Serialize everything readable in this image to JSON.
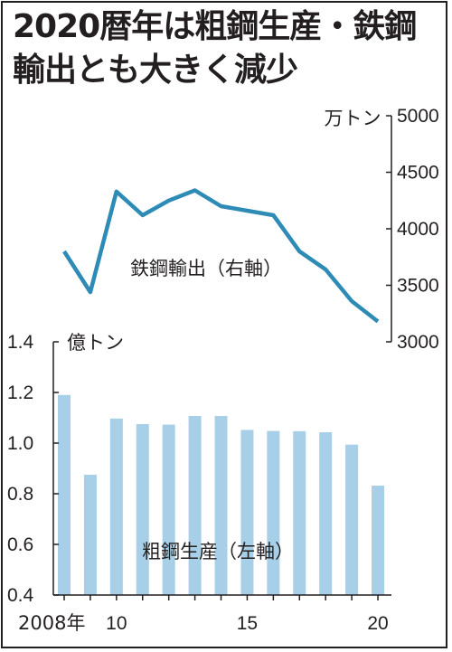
{
  "title": {
    "line1": "2020暦年は粗鋼生産・鉄鋼",
    "line2": "輸出とも大きく減少"
  },
  "colors": {
    "bar": "#a8cfe8",
    "line": "#2d8bb6",
    "ink": "#231f20"
  },
  "chart_data": [
    {
      "type": "line",
      "name": "鉄鋼輸出",
      "label": "鉄鋼輸出（右軸）",
      "axis": "right",
      "unit": "万トン",
      "x": [
        2008,
        2009,
        2010,
        2011,
        2012,
        2013,
        2014,
        2015,
        2016,
        2017,
        2018,
        2019,
        2020
      ],
      "values": [
        3800,
        3440,
        4330,
        4120,
        4250,
        4340,
        4200,
        4160,
        4120,
        3800,
        3640,
        3360,
        3180
      ],
      "ylim": [
        3000,
        5000
      ],
      "yticks": [
        3000,
        3500,
        4000,
        4500,
        5000
      ]
    },
    {
      "type": "bar",
      "name": "粗鋼生産",
      "label": "粗鋼生産（左軸）",
      "axis": "left",
      "unit": "億トン",
      "x": [
        2008,
        2009,
        2010,
        2011,
        2012,
        2013,
        2014,
        2015,
        2016,
        2017,
        2018,
        2019,
        2020
      ],
      "values": [
        1.19,
        0.875,
        1.097,
        1.075,
        1.073,
        1.107,
        1.107,
        1.052,
        1.048,
        1.047,
        1.043,
        0.994,
        0.832
      ],
      "ylim": [
        0.4,
        1.4
      ],
      "yticks": [
        "0.4",
        "0.6",
        "0.8",
        "1.0",
        "1.2",
        "1.4"
      ]
    }
  ],
  "x_tick_labels": [
    {
      "year": 2008,
      "text": "2008年"
    },
    {
      "year": 2010,
      "text": "10"
    },
    {
      "year": 2015,
      "text": "15"
    },
    {
      "year": 2020,
      "text": "20"
    }
  ]
}
